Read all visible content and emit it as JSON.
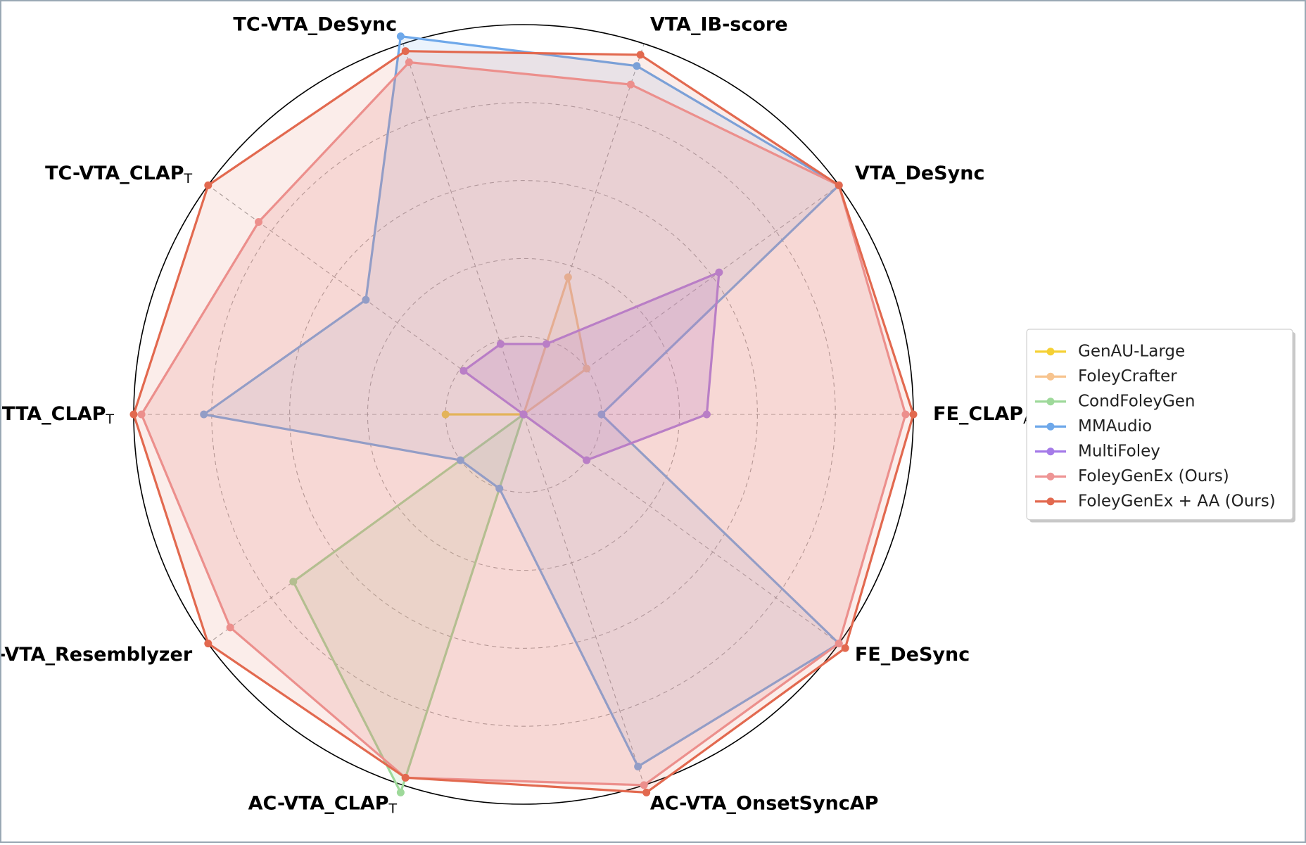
{
  "chart_data": {
    "type": "radar",
    "title": "",
    "axes": [
      {
        "name": "FE_CLAP",
        "sub": "A"
      },
      {
        "name": "VTA_DeSync",
        "sub": ""
      },
      {
        "name": "VTA_IB-score",
        "sub": ""
      },
      {
        "name": "TC-VTA_DeSync",
        "sub": ""
      },
      {
        "name": "TC-VTA_CLAP",
        "sub": "T"
      },
      {
        "name": "TTA_CLAP",
        "sub": "T"
      },
      {
        "name": "AC-VTA_Resemblyzer",
        "sub": ""
      },
      {
        "name": "AC-VTA_CLAP",
        "sub": "T"
      },
      {
        "name": "AC-VTA_OnsetSyncAP",
        "sub": ""
      },
      {
        "name": "FE_DeSync",
        "sub": ""
      }
    ],
    "radial_range": [
      0,
      1
    ],
    "grid_rings": [
      0.2,
      0.4,
      0.6,
      0.8,
      1.0
    ],
    "grid": true,
    "legend_position": "right",
    "series": [
      {
        "name": "GenAU-Large",
        "color": "#f5d033",
        "fill_opacity": 0.12,
        "values": [
          0,
          0,
          0,
          0,
          0,
          0.2,
          0,
          0,
          0,
          0
        ]
      },
      {
        "name": "FoleyCrafter",
        "color": "#f7c48f",
        "fill_opacity": 0.12,
        "values": [
          0,
          0.2,
          0.37,
          0,
          0,
          0,
          0,
          0,
          0,
          0
        ]
      },
      {
        "name": "CondFoleyGen",
        "color": "#9ed99a",
        "fill_opacity": 0.18,
        "values": [
          0,
          0,
          0,
          0,
          0,
          0,
          0.73,
          1.02,
          0,
          0.2
        ]
      },
      {
        "name": "MMAudio",
        "color": "#6ea8ea",
        "fill_opacity": 0.14,
        "values": [
          0.2,
          1.0,
          0.94,
          1.02,
          0.5,
          0.82,
          0.2,
          0.2,
          0.95,
          1.0
        ]
      },
      {
        "name": "MultiFoley",
        "color": "#a57be8",
        "fill_opacity": 0.22,
        "values": [
          0.47,
          0.62,
          0.19,
          0.19,
          0.19,
          0,
          0,
          0,
          0,
          0.2
        ]
      },
      {
        "name": "FoleyGenEx (Ours)",
        "color": "#ee9595",
        "fill_opacity": 0.22,
        "values": [
          0.98,
          1.0,
          0.89,
          0.95,
          0.84,
          0.98,
          0.93,
          0.98,
          1.0,
          1.0
        ]
      },
      {
        "name": "FoleyGenEx + AA (Ours)",
        "color": "#e2694f",
        "fill_opacity": 0.12,
        "values": [
          1.0,
          1.0,
          0.97,
          0.98,
          1.0,
          1.0,
          1.0,
          0.98,
          1.02,
          1.02
        ]
      }
    ]
  }
}
